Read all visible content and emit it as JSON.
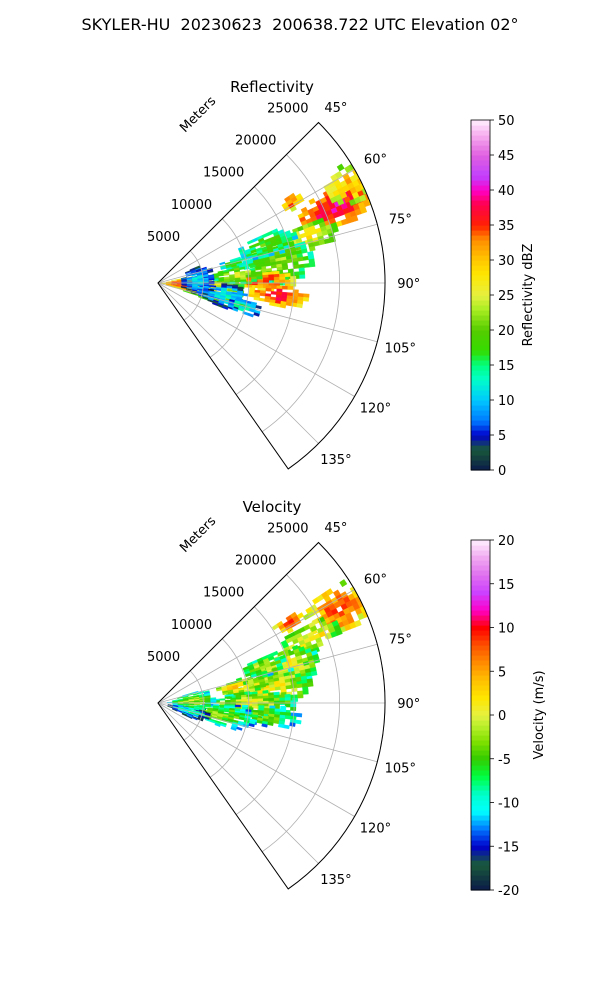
{
  "figure": {
    "suptitle": "SKYLER-HU  20230623  200638.722 UTC Elevation 02°"
  },
  "chart_data": [
    {
      "type": "heatmap",
      "projection": "polar-sector",
      "title": "Reflectivity",
      "radial_label": "Meters",
      "radial_ticks": [
        5000,
        10000,
        15000,
        20000,
        25000
      ],
      "radial_range": [
        0,
        25000
      ],
      "angle_range_deg": [
        45,
        145
      ],
      "angle_ticks": [
        "45°",
        "60°",
        "75°",
        "90°",
        "105°",
        "120°",
        "135°"
      ],
      "grid": true,
      "colorbar": {
        "label": "Reflectivity dBZ",
        "range": [
          0,
          50
        ],
        "ticks": [
          0,
          5,
          10,
          15,
          20,
          25,
          30,
          35,
          40,
          45,
          50
        ],
        "stops": [
          {
            "v": 0,
            "c": "#0a1a4a"
          },
          {
            "v": 3,
            "c": "#1a5a3a"
          },
          {
            "v": 5,
            "c": "#0000cc"
          },
          {
            "v": 7,
            "c": "#0077ff"
          },
          {
            "v": 10,
            "c": "#00c8ff"
          },
          {
            "v": 13,
            "c": "#00ffc8"
          },
          {
            "v": 15,
            "c": "#00ff80"
          },
          {
            "v": 17,
            "c": "#33dd00"
          },
          {
            "v": 20,
            "c": "#55cc00"
          },
          {
            "v": 23,
            "c": "#aaee22"
          },
          {
            "v": 25,
            "c": "#e6f040"
          },
          {
            "v": 28,
            "c": "#ffe600"
          },
          {
            "v": 30,
            "c": "#ffc800"
          },
          {
            "v": 33,
            "c": "#ff8c00"
          },
          {
            "v": 35,
            "c": "#ff2000"
          },
          {
            "v": 38,
            "c": "#ff0050"
          },
          {
            "v": 40,
            "c": "#ff00c8"
          },
          {
            "v": 42,
            "c": "#c040ff"
          },
          {
            "v": 45,
            "c": "#e060e0"
          },
          {
            "v": 48,
            "c": "#f8b0f0"
          },
          {
            "v": 50,
            "c": "#fff0ff"
          }
        ]
      },
      "echoes": [
        {
          "az": 66,
          "r": 21000,
          "ar": 4500,
          "aa": 6,
          "v": 38
        },
        {
          "az": 62,
          "r": 23500,
          "ar": 3000,
          "aa": 5,
          "v": 30
        },
        {
          "az": 72,
          "r": 17000,
          "ar": 3500,
          "aa": 5,
          "v": 27
        },
        {
          "az": 80,
          "r": 13000,
          "ar": 4000,
          "aa": 10,
          "v": 22
        },
        {
          "az": 88,
          "r": 11500,
          "ar": 3500,
          "aa": 5,
          "v": 35
        },
        {
          "az": 95,
          "r": 13000,
          "ar": 3500,
          "aa": 5,
          "v": 37
        },
        {
          "az": 96,
          "r": 5000,
          "ar": 4500,
          "aa": 12,
          "v": 27
        },
        {
          "az": 92,
          "r": 2500,
          "ar": 2500,
          "aa": 14,
          "v": 36
        },
        {
          "az": 75,
          "r": 8500,
          "ar": 2000,
          "aa": 4,
          "v": 18
        },
        {
          "az": 84,
          "r": 8500,
          "ar": 3000,
          "aa": 6,
          "v": 24
        },
        {
          "az": 58,
          "r": 17000,
          "ar": 1500,
          "aa": 3,
          "v": 34
        },
        {
          "az": 100,
          "r": 7000,
          "ar": 3000,
          "aa": 10,
          "v": 12
        },
        {
          "az": 86,
          "r": 4000,
          "ar": 2000,
          "aa": 20,
          "v": 11
        },
        {
          "az": 70,
          "r": 12500,
          "ar": 3500,
          "aa": 6,
          "v": 19
        },
        {
          "az": 105,
          "r": 9500,
          "ar": 2000,
          "aa": 5,
          "v": 14
        }
      ]
    },
    {
      "type": "heatmap",
      "projection": "polar-sector",
      "title": "Velocity",
      "radial_label": "Meters",
      "radial_ticks": [
        5000,
        10000,
        15000,
        20000,
        25000
      ],
      "radial_range": [
        0,
        25000
      ],
      "angle_range_deg": [
        45,
        145
      ],
      "angle_ticks": [
        "45°",
        "60°",
        "75°",
        "90°",
        "105°",
        "120°",
        "135°"
      ],
      "grid": true,
      "colorbar": {
        "label": "Velocity (m/s)",
        "range": [
          -20,
          20
        ],
        "ticks": [
          -20,
          -15,
          -10,
          -5,
          0,
          5,
          10,
          15,
          20
        ],
        "stops": [
          {
            "v": -20,
            "c": "#0a1a4a"
          },
          {
            "v": -17,
            "c": "#1a5a3a"
          },
          {
            "v": -15,
            "c": "#0000cc"
          },
          {
            "v": -13,
            "c": "#0077ff"
          },
          {
            "v": -11,
            "c": "#00ffff"
          },
          {
            "v": -9,
            "c": "#00ffc8"
          },
          {
            "v": -7,
            "c": "#00ff40"
          },
          {
            "v": -5,
            "c": "#33cc00"
          },
          {
            "v": -3,
            "c": "#80e000"
          },
          {
            "v": -1,
            "c": "#c0f030"
          },
          {
            "v": 0,
            "c": "#e6f040"
          },
          {
            "v": 2,
            "c": "#ffe600"
          },
          {
            "v": 4,
            "c": "#ffc000"
          },
          {
            "v": 6,
            "c": "#ff8c00"
          },
          {
            "v": 8,
            "c": "#ff5000"
          },
          {
            "v": 10,
            "c": "#ff0000"
          },
          {
            "v": 12,
            "c": "#ff00c8"
          },
          {
            "v": 14,
            "c": "#cc40ff"
          },
          {
            "v": 16,
            "c": "#e070f0"
          },
          {
            "v": 18,
            "c": "#f0a8f0"
          },
          {
            "v": 20,
            "c": "#fff0ff"
          }
        ]
      },
      "echoes": [
        {
          "az": 62,
          "r": 22000,
          "ar": 4000,
          "aa": 7,
          "v": 7
        },
        {
          "az": 66,
          "r": 18000,
          "ar": 3500,
          "aa": 5,
          "v": 2
        },
        {
          "az": 58,
          "r": 16500,
          "ar": 2000,
          "aa": 3,
          "v": 8
        },
        {
          "az": 74,
          "r": 14000,
          "ar": 4000,
          "aa": 8,
          "v": 1
        },
        {
          "az": 82,
          "r": 12000,
          "ar": 5000,
          "aa": 8,
          "v": 1
        },
        {
          "az": 90,
          "r": 10000,
          "ar": 5000,
          "aa": 8,
          "v": 0
        },
        {
          "az": 96,
          "r": 11500,
          "ar": 4000,
          "aa": 6,
          "v": -4
        },
        {
          "az": 100,
          "r": 6500,
          "ar": 4000,
          "aa": 10,
          "v": -3
        },
        {
          "az": 104,
          "r": 3000,
          "ar": 2500,
          "aa": 10,
          "v": -9
        },
        {
          "az": 86,
          "r": 3500,
          "ar": 2500,
          "aa": 14,
          "v": -2
        },
        {
          "az": 78,
          "r": 9000,
          "ar": 3000,
          "aa": 5,
          "v": 3
        },
        {
          "az": 70,
          "r": 12000,
          "ar": 2500,
          "aa": 5,
          "v": -1
        }
      ]
    }
  ]
}
